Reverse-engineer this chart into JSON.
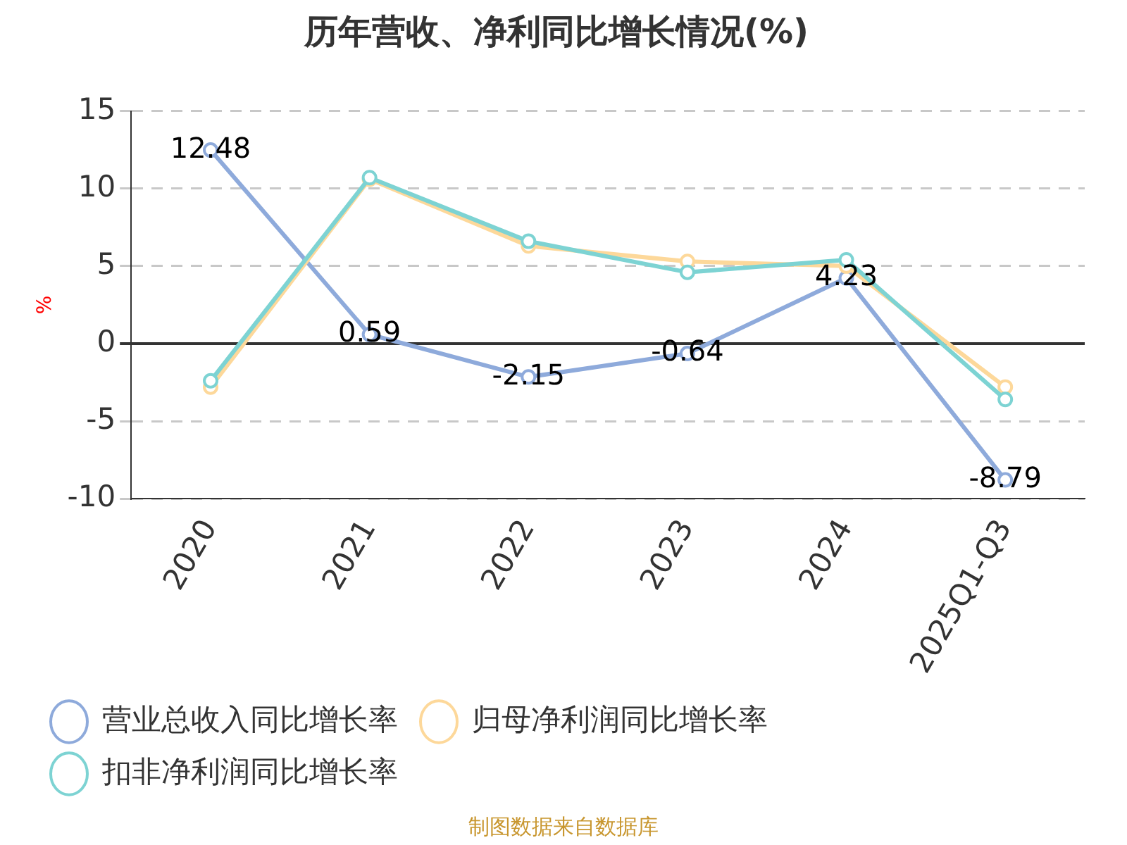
{
  "chart_data": {
    "type": "line",
    "title": "历年营收、净利同比增长情况(%)",
    "ylabel": "%",
    "categories": [
      "2020",
      "2021",
      "2022",
      "2023",
      "2024",
      "2025Q1-Q3"
    ],
    "series": [
      {
        "name": "营业总收入同比增长率",
        "color": "#8eaadb",
        "values": [
          12.48,
          0.59,
          -2.15,
          -0.64,
          4.23,
          -8.79
        ],
        "value_labels": [
          "12.48",
          "0.59",
          "-2.15",
          "-0.64",
          "4.23",
          "-8.79"
        ]
      },
      {
        "name": "归母净利润同比增长率",
        "color": "#fdd89a",
        "values": [
          -2.8,
          10.6,
          6.3,
          5.3,
          5.0,
          -2.8
        ]
      },
      {
        "name": "扣非净利润同比增长率",
        "color": "#7dd3d3",
        "values": [
          -2.4,
          10.7,
          6.6,
          4.6,
          5.4,
          -3.6
        ]
      }
    ],
    "ylim": [
      -10,
      15
    ],
    "yticks": [
      -10,
      -5,
      0,
      5,
      10,
      15
    ],
    "grid": "y",
    "legend": "bottom",
    "marker": "circle",
    "line_style": "solid",
    "annotations": [
      "制图数据来自数据库"
    ]
  }
}
